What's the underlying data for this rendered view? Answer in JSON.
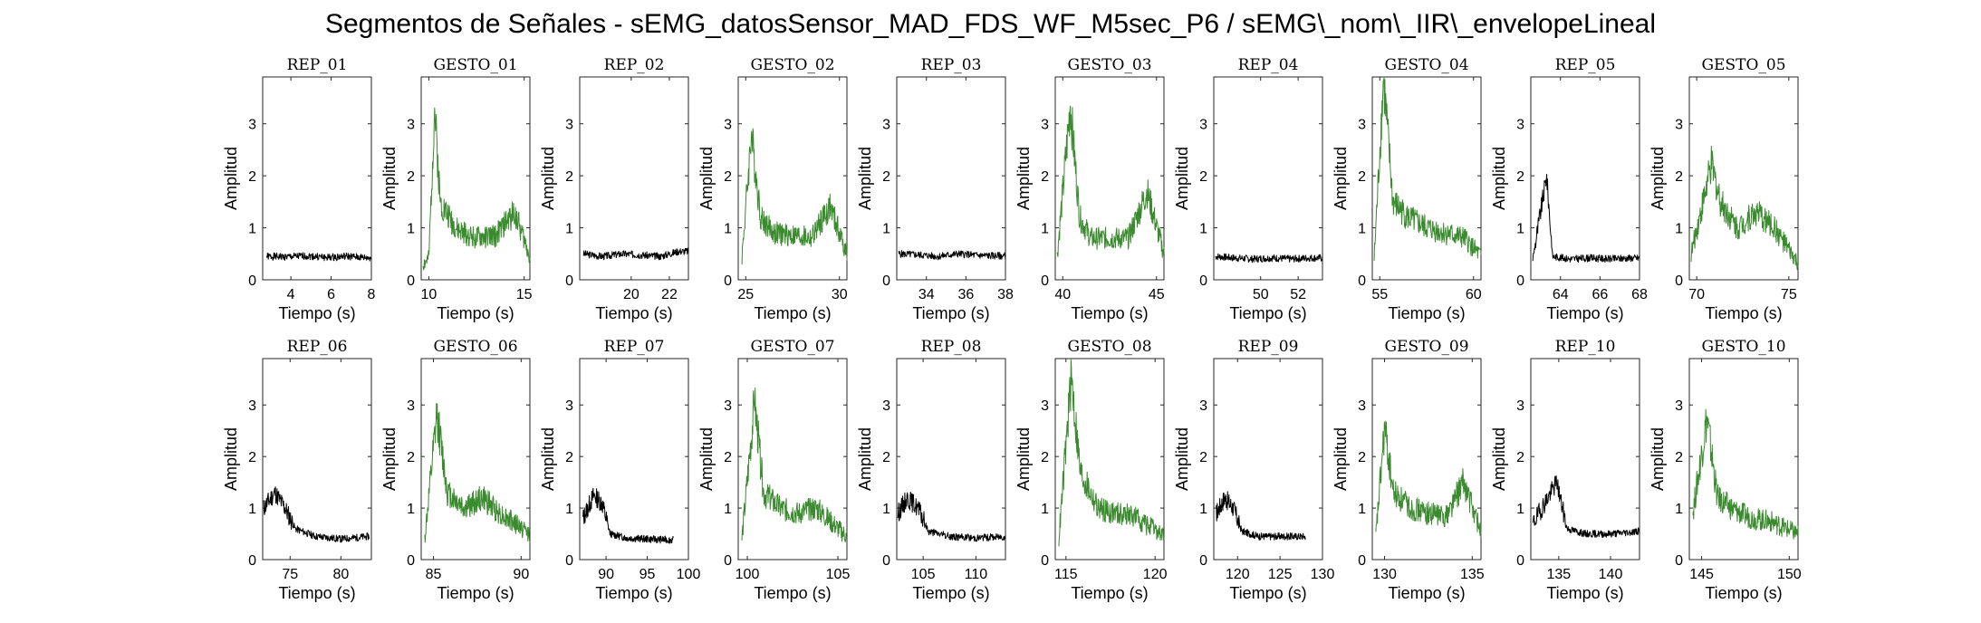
{
  "title": "Segmentos de Señales - sEMG_datosSensor_MAD_FDS_WF_M5sec_P6 / sEMG\\_nom\\_IIR\\_envelopeLineal",
  "colors": {
    "rep": "#000000",
    "gesto": "#3a8a2e",
    "axis": "#262626"
  },
  "chart_data": [
    {
      "type": "line",
      "title": "REP_01",
      "kind": "rep",
      "xlabel": "Tiempo (s)",
      "ylabel": "Amplitud",
      "xlim": [
        2.6,
        8
      ],
      "ylim": [
        0,
        3.9
      ],
      "xticks": [
        4,
        6,
        8
      ],
      "yticks": [
        0,
        1,
        2,
        3
      ],
      "t0": 2.8,
      "t1": 8,
      "base": 0.45,
      "peak": null,
      "x": [
        2.8,
        3.8,
        4.8,
        5.8,
        6.8,
        7.8
      ],
      "y": [
        0.45,
        0.44,
        0.46,
        0.43,
        0.45,
        0.42
      ]
    },
    {
      "type": "line",
      "title": "GESTO_01",
      "kind": "gesto",
      "xlabel": "Tiempo (s)",
      "ylabel": "Amplitud",
      "xlim": [
        9.6,
        15.3
      ],
      "ylim": [
        0,
        3.9
      ],
      "xticks": [
        10,
        15
      ],
      "yticks": [
        0,
        1,
        2,
        3
      ],
      "t0": 9.7,
      "t1": 15.3,
      "base": 0.8,
      "peak": {
        "t": 10.3,
        "v": 3.3
      },
      "x": [
        9.7,
        10.0,
        10.3,
        10.6,
        11.5,
        12.5,
        13.5,
        14.5,
        15.3
      ],
      "y": [
        0.3,
        0.4,
        3.3,
        1.5,
        0.95,
        0.8,
        0.85,
        1.3,
        0.45
      ]
    },
    {
      "type": "line",
      "title": "REP_02",
      "kind": "rep",
      "xlabel": "Tiempo (s)",
      "ylabel": "Amplitud",
      "xlim": [
        17.3,
        23
      ],
      "ylim": [
        0,
        3.9
      ],
      "xticks": [
        20,
        22
      ],
      "yticks": [
        0,
        1,
        2,
        3
      ],
      "t0": 17.5,
      "t1": 23,
      "base": 0.48,
      "peak": null,
      "x": [
        17.5,
        18.5,
        19.5,
        20.5,
        21.5,
        22.5
      ],
      "y": [
        0.5,
        0.45,
        0.5,
        0.48,
        0.45,
        0.55
      ]
    },
    {
      "type": "line",
      "title": "GESTO_02",
      "kind": "gesto",
      "xlabel": "Tiempo (s)",
      "ylabel": "Amplitud",
      "xlim": [
        24.6,
        30.4
      ],
      "ylim": [
        0,
        3.9
      ],
      "xticks": [
        25,
        30
      ],
      "yticks": [
        0,
        1,
        2,
        3
      ],
      "t0": 24.8,
      "t1": 30.4,
      "base": 0.85,
      "peak": {
        "t": 25.3,
        "v": 2.8
      },
      "x": [
        24.8,
        25.3,
        25.8,
        26.5,
        27.5,
        28.5,
        29.5,
        30.4
      ],
      "y": [
        0.45,
        2.8,
        1.2,
        0.9,
        0.85,
        0.8,
        1.4,
        0.5
      ]
    },
    {
      "type": "line",
      "title": "REP_03",
      "kind": "rep",
      "xlabel": "Tiempo (s)",
      "ylabel": "Amplitud",
      "xlim": [
        32.5,
        38
      ],
      "ylim": [
        0,
        3.9
      ],
      "xticks": [
        34,
        36,
        38
      ],
      "yticks": [
        0,
        1,
        2,
        3
      ],
      "t0": 32.6,
      "t1": 38,
      "base": 0.48,
      "peak": null,
      "x": [
        32.6,
        33.6,
        34.6,
        35.6,
        36.6,
        37.6
      ],
      "y": [
        0.5,
        0.48,
        0.45,
        0.5,
        0.47,
        0.46
      ]
    },
    {
      "type": "line",
      "title": "GESTO_03",
      "kind": "gesto",
      "xlabel": "Tiempo (s)",
      "ylabel": "Amplitud",
      "xlim": [
        39.6,
        45.4
      ],
      "ylim": [
        0,
        3.9
      ],
      "xticks": [
        40,
        45
      ],
      "yticks": [
        0,
        1,
        2,
        3
      ],
      "t0": 39.7,
      "t1": 45.4,
      "base": 0.8,
      "peak": {
        "t": 40.4,
        "v": 3.35
      },
      "x": [
        39.7,
        40.4,
        40.9,
        41.5,
        42.5,
        43.5,
        44.5,
        45.4
      ],
      "y": [
        0.45,
        3.35,
        1.2,
        0.8,
        0.8,
        0.8,
        1.7,
        0.5
      ]
    },
    {
      "type": "line",
      "title": "REP_04",
      "kind": "rep",
      "xlabel": "Tiempo (s)",
      "ylabel": "Amplitud",
      "xlim": [
        47.5,
        53.3
      ],
      "ylim": [
        0,
        3.9
      ],
      "xticks": [
        50,
        52
      ],
      "yticks": [
        0,
        1,
        2,
        3
      ],
      "t0": 47.6,
      "t1": 53.3,
      "base": 0.42,
      "peak": null,
      "x": [
        47.6,
        48.6,
        49.6,
        50.6,
        51.6,
        52.6
      ],
      "y": [
        0.45,
        0.42,
        0.4,
        0.42,
        0.4,
        0.42
      ]
    },
    {
      "type": "line",
      "title": "GESTO_04",
      "kind": "gesto",
      "xlabel": "Tiempo (s)",
      "ylabel": "Amplitud",
      "xlim": [
        54.6,
        60.4
      ],
      "ylim": [
        0,
        3.9
      ],
      "xticks": [
        55,
        60
      ],
      "yticks": [
        0,
        1,
        2,
        3
      ],
      "t0": 54.7,
      "t1": 60.4,
      "base": 0.9,
      "peak": {
        "t": 55.2,
        "v": 3.85
      },
      "x": [
        54.7,
        55.2,
        55.7,
        56.5,
        57.5,
        58.5,
        59.5,
        60.4
      ],
      "y": [
        0.4,
        3.85,
        1.5,
        1.2,
        1.0,
        0.9,
        0.8,
        0.45
      ]
    },
    {
      "type": "line",
      "title": "REP_05",
      "kind": "rep",
      "xlabel": "Tiempo (s)",
      "ylabel": "Amplitud",
      "xlim": [
        62.5,
        68
      ],
      "ylim": [
        0,
        3.9
      ],
      "xticks": [
        64,
        66,
        68
      ],
      "yticks": [
        0,
        1,
        2,
        3
      ],
      "t0": 62.6,
      "t1": 68,
      "base": 0.4,
      "peak": {
        "t": 63.3,
        "v": 2.0
      },
      "x": [
        62.6,
        63.3,
        63.6,
        64.5,
        65.5,
        66.5,
        67.5
      ],
      "y": [
        0.4,
        2.0,
        0.45,
        0.4,
        0.42,
        0.4,
        0.42
      ]
    },
    {
      "type": "line",
      "title": "GESTO_05",
      "kind": "gesto",
      "xlabel": "Tiempo (s)",
      "ylabel": "Amplitud",
      "xlim": [
        69.6,
        75.5
      ],
      "ylim": [
        0,
        3.9
      ],
      "xticks": [
        70,
        75
      ],
      "yticks": [
        0,
        1,
        2,
        3
      ],
      "t0": 69.7,
      "t1": 75.5,
      "base": 1.0,
      "peak": {
        "t": 70.8,
        "v": 2.2
      },
      "x": [
        69.7,
        70.8,
        71.3,
        72.2,
        73.2,
        74.2,
        75.5
      ],
      "y": [
        0.5,
        2.2,
        1.5,
        1.0,
        1.3,
        1.0,
        0.3
      ]
    },
    {
      "type": "line",
      "title": "REP_06",
      "kind": "rep",
      "xlabel": "Tiempo (s)",
      "ylabel": "Amplitud",
      "xlim": [
        72.3,
        83
      ],
      "ylim": [
        0,
        3.9
      ],
      "xticks": [
        75,
        80
      ],
      "yticks": [
        0,
        1,
        2,
        3
      ],
      "t0": 72.4,
      "t1": 82.8,
      "base": 0.42,
      "peak": null,
      "lead": {
        "t": 75.3,
        "v": 1.15
      },
      "x": [
        72.4,
        73.5,
        74.5,
        75.5,
        77.5,
        80,
        82.8
      ],
      "y": [
        1.0,
        1.3,
        1.0,
        0.6,
        0.45,
        0.4,
        0.45
      ]
    },
    {
      "type": "line",
      "title": "GESTO_06",
      "kind": "gesto",
      "xlabel": "Tiempo (s)",
      "ylabel": "Amplitud",
      "xlim": [
        84.3,
        90.5
      ],
      "ylim": [
        0,
        3.9
      ],
      "xticks": [
        85,
        90
      ],
      "yticks": [
        0,
        1,
        2,
        3
      ],
      "t0": 84.5,
      "t1": 90.5,
      "base": 0.9,
      "peak": {
        "t": 85.2,
        "v": 2.8
      },
      "x": [
        84.5,
        85.2,
        85.8,
        86.8,
        87.8,
        88.8,
        90.5
      ],
      "y": [
        0.4,
        2.8,
        1.3,
        1.0,
        1.2,
        0.9,
        0.5
      ]
    },
    {
      "type": "line",
      "title": "REP_07",
      "kind": "rep",
      "xlabel": "Tiempo (s)",
      "ylabel": "Amplitud",
      "xlim": [
        86.8,
        100
      ],
      "ylim": [
        0,
        3.9
      ],
      "xticks": [
        90,
        95,
        100
      ],
      "yticks": [
        0,
        1,
        2,
        3
      ],
      "t0": 87.2,
      "t1": 98.2,
      "base": 0.4,
      "peak": null,
      "lead": {
        "t": 90.6,
        "v": 1.1
      },
      "x": [
        87.2,
        88.5,
        89.5,
        90.5,
        92.5,
        95,
        98.2
      ],
      "y": [
        0.8,
        1.25,
        1.1,
        0.5,
        0.42,
        0.4,
        0.38
      ]
    },
    {
      "type": "line",
      "title": "GESTO_07",
      "kind": "gesto",
      "xlabel": "Tiempo (s)",
      "ylabel": "Amplitud",
      "xlim": [
        99.5,
        105.5
      ],
      "ylim": [
        0,
        3.9
      ],
      "xticks": [
        100,
        105
      ],
      "yticks": [
        0,
        1,
        2,
        3
      ],
      "t0": 99.7,
      "t1": 105.5,
      "base": 1.0,
      "peak": {
        "t": 100.4,
        "v": 3.05
      },
      "x": [
        99.7,
        100.4,
        100.9,
        101.8,
        102.8,
        103.8,
        105.5
      ],
      "y": [
        0.4,
        3.05,
        1.3,
        1.0,
        0.9,
        1.0,
        0.45
      ]
    },
    {
      "type": "line",
      "title": "REP_08",
      "kind": "rep",
      "xlabel": "Tiempo (s)",
      "ylabel": "Amplitud",
      "xlim": [
        102.5,
        112.8
      ],
      "ylim": [
        0,
        3.9
      ],
      "xticks": [
        105,
        110
      ],
      "yticks": [
        0,
        1,
        2,
        3
      ],
      "t0": 102.6,
      "t1": 112.8,
      "base": 0.42,
      "peak": null,
      "lead": {
        "t": 105.5,
        "v": 1.05
      },
      "x": [
        102.6,
        103.5,
        104.5,
        105.5,
        107.5,
        110,
        112.8
      ],
      "y": [
        0.9,
        1.2,
        1.0,
        0.55,
        0.45,
        0.42,
        0.45
      ]
    },
    {
      "type": "line",
      "title": "GESTO_08",
      "kind": "gesto",
      "xlabel": "Tiempo (s)",
      "ylabel": "Amplitud",
      "xlim": [
        114.4,
        120.5
      ],
      "ylim": [
        0,
        3.9
      ],
      "xticks": [
        115,
        120
      ],
      "yticks": [
        0,
        1,
        2,
        3
      ],
      "t0": 114.6,
      "t1": 120.5,
      "base": 0.9,
      "peak": {
        "t": 115.3,
        "v": 3.55
      },
      "x": [
        114.6,
        115.3,
        115.8,
        116.8,
        117.8,
        118.8,
        120.5
      ],
      "y": [
        0.4,
        3.55,
        1.7,
        1.0,
        0.9,
        0.85,
        0.45
      ]
    },
    {
      "type": "line",
      "title": "REP_09",
      "kind": "rep",
      "xlabel": "Tiempo (s)",
      "ylabel": "Amplitud",
      "xlim": [
        117.2,
        130
      ],
      "ylim": [
        0,
        3.9
      ],
      "xticks": [
        120,
        125,
        130
      ],
      "yticks": [
        0,
        1,
        2,
        3
      ],
      "t0": 117.5,
      "t1": 128,
      "base": 0.45,
      "peak": null,
      "lead": {
        "t": 120.8,
        "v": 1.1
      },
      "x": [
        117.5,
        118.5,
        119.5,
        120.5,
        122.5,
        125,
        128
      ],
      "y": [
        0.9,
        1.2,
        1.0,
        0.55,
        0.45,
        0.45,
        0.45
      ]
    },
    {
      "type": "line",
      "title": "GESTO_09",
      "kind": "gesto",
      "xlabel": "Tiempo (s)",
      "ylabel": "Amplitud",
      "xlim": [
        129.3,
        135.5
      ],
      "ylim": [
        0,
        3.9
      ],
      "xticks": [
        130,
        135
      ],
      "yticks": [
        0,
        1,
        2,
        3
      ],
      "t0": 129.5,
      "t1": 135.5,
      "base": 0.9,
      "peak": {
        "t": 130.0,
        "v": 2.55
      },
      "x": [
        129.5,
        130.0,
        130.5,
        131.5,
        132.5,
        133.5,
        134.5,
        135.5
      ],
      "y": [
        0.45,
        2.55,
        1.3,
        1.0,
        0.9,
        0.85,
        1.5,
        0.55
      ]
    },
    {
      "type": "line",
      "title": "REP_10",
      "kind": "rep",
      "xlabel": "Tiempo (s)",
      "ylabel": "Amplitud",
      "xlim": [
        132.3,
        142.8
      ],
      "ylim": [
        0,
        3.9
      ],
      "xticks": [
        135,
        140
      ],
      "yticks": [
        0,
        1,
        2,
        3
      ],
      "t0": 132.5,
      "t1": 142.8,
      "base": 0.5,
      "peak": {
        "t": 134.8,
        "v": 1.5
      },
      "x": [
        132.5,
        134.8,
        135.8,
        137.5,
        140,
        142.8
      ],
      "y": [
        0.7,
        1.5,
        0.6,
        0.5,
        0.5,
        0.55
      ]
    },
    {
      "type": "line",
      "title": "GESTO_10",
      "kind": "gesto",
      "xlabel": "Tiempo (s)",
      "ylabel": "Amplitud",
      "xlim": [
        144.3,
        150.5
      ],
      "ylim": [
        0,
        3.9
      ],
      "xticks": [
        145,
        150
      ],
      "yticks": [
        0,
        1,
        2,
        3
      ],
      "t0": 144.5,
      "t1": 150.5,
      "base": 0.8,
      "peak": {
        "t": 145.3,
        "v": 2.75
      },
      "x": [
        144.5,
        145.3,
        145.9,
        146.9,
        147.9,
        148.9,
        150.5
      ],
      "y": [
        0.9,
        2.75,
        1.2,
        0.95,
        0.8,
        0.75,
        0.5
      ]
    }
  ]
}
